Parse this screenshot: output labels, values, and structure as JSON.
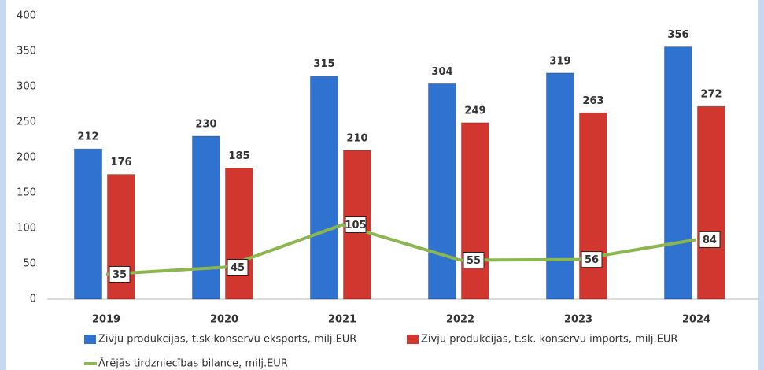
{
  "chart_data": {
    "type": "bar_line",
    "categories": [
      "2019",
      "2020",
      "2021",
      "2022",
      "2023",
      "2024"
    ],
    "series": [
      {
        "name": "Zivju produkcijas, t.sk.konservu eksports, milj.EUR",
        "color": "#2f72d0",
        "values": [
          212,
          230,
          315,
          304,
          319,
          356
        ]
      },
      {
        "name": "Zivju produkcijas, t.sk. konservu imports, milj.EUR",
        "color": "#d2372f",
        "values": [
          176,
          185,
          210,
          249,
          263,
          272
        ]
      },
      {
        "name": "Ārējās tirdzniecības bilance, milj.EUR",
        "color": "#8bb650",
        "type": "line",
        "values": [
          35,
          45,
          105,
          55,
          56,
          84
        ]
      }
    ],
    "ylim": [
      0,
      400
    ],
    "yticks": [
      0,
      50,
      100,
      150,
      200,
      250,
      300,
      350,
      400
    ],
    "grid": false
  }
}
